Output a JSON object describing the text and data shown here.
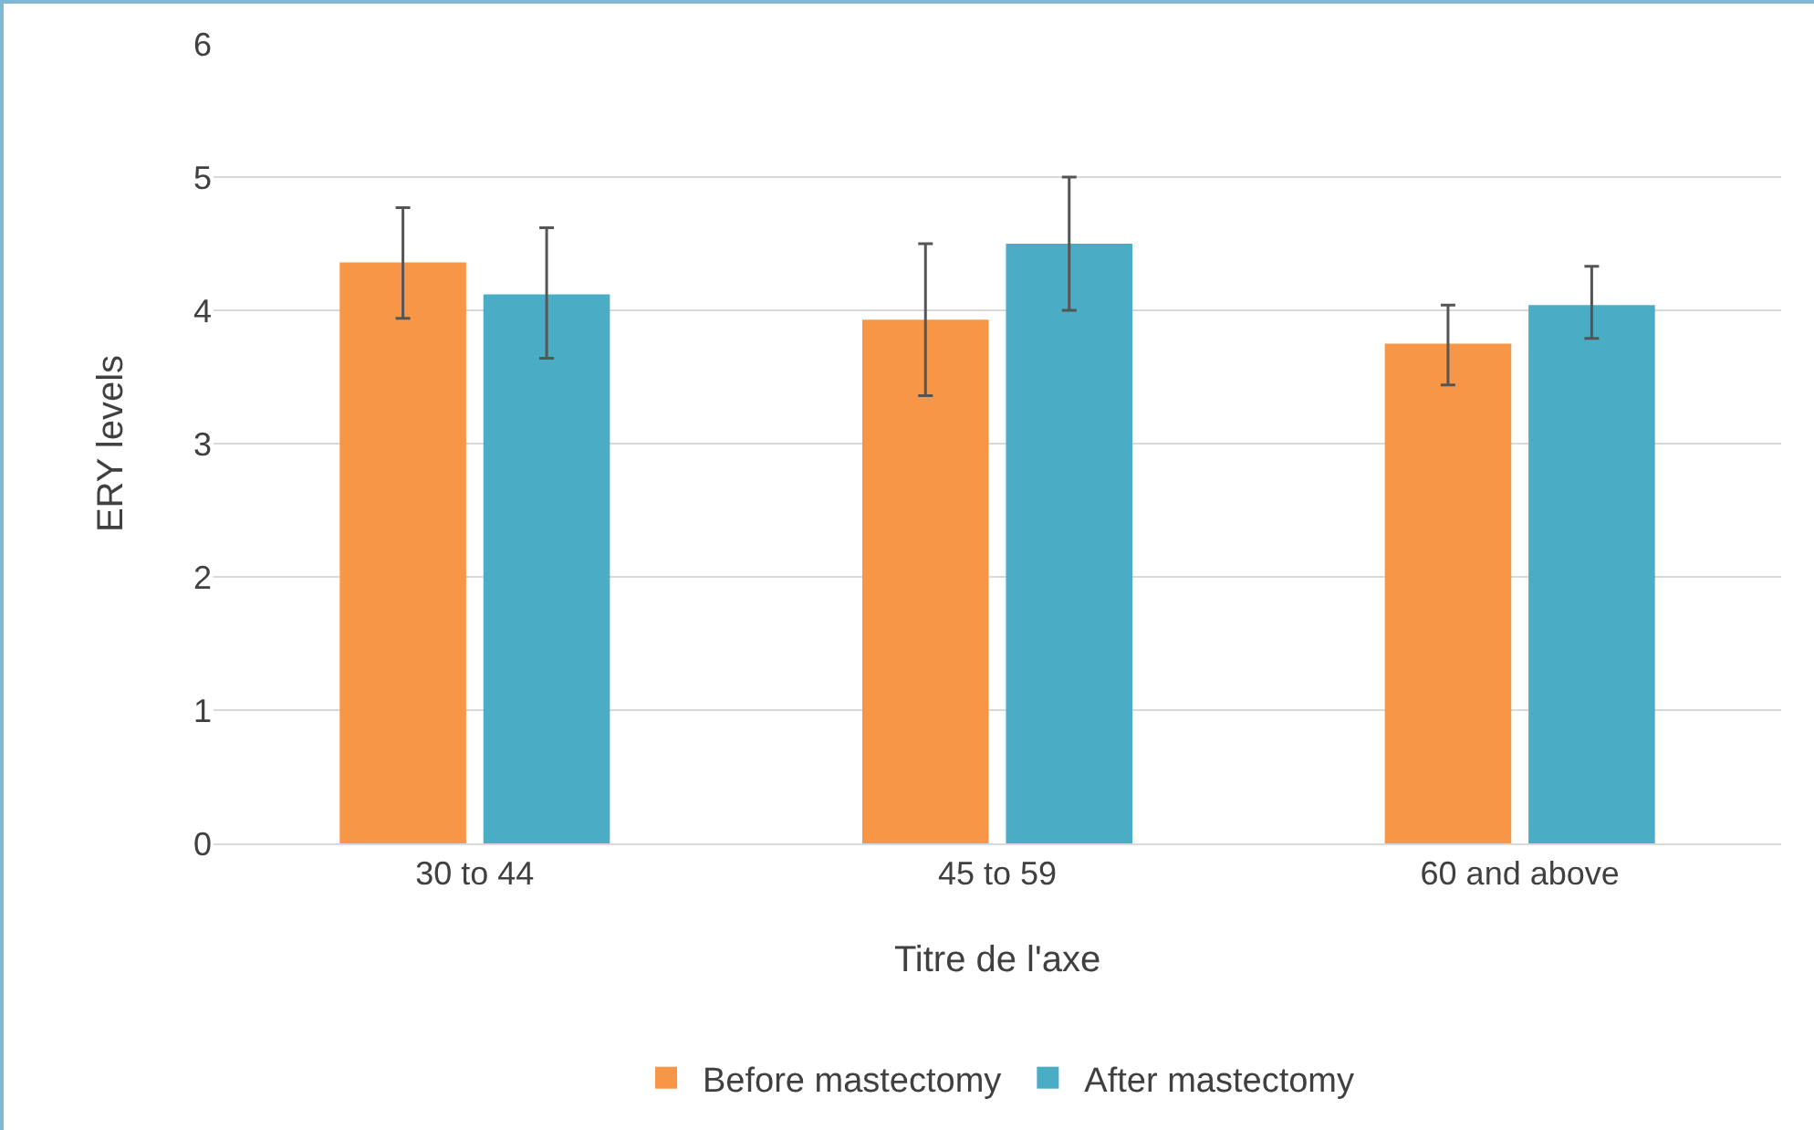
{
  "chart_data": {
    "type": "bar",
    "xlabel": "Titre de l'axe",
    "ylabel": "ERY levels",
    "categories": [
      "30 to 44",
      "45 to 59",
      "60 and above"
    ],
    "series": [
      {
        "name": "Before mastectomy",
        "color": "#f79646",
        "values": [
          4.36,
          3.93,
          3.75
        ],
        "errors": [
          [
            3.94,
            4.77
          ],
          [
            3.36,
            4.5
          ],
          [
            3.44,
            4.04
          ]
        ]
      },
      {
        "name": "After mastectomy",
        "color": "#4bacc6",
        "values": [
          4.12,
          4.5,
          4.04
        ],
        "errors": [
          [
            3.64,
            4.62
          ],
          [
            4.0,
            5.0
          ],
          [
            3.79,
            4.33
          ]
        ]
      }
    ],
    "ylim": [
      0,
      6
    ],
    "yticks": [
      0,
      1,
      2,
      3,
      4,
      5,
      6
    ],
    "grid": "y",
    "legend": "bottom"
  }
}
